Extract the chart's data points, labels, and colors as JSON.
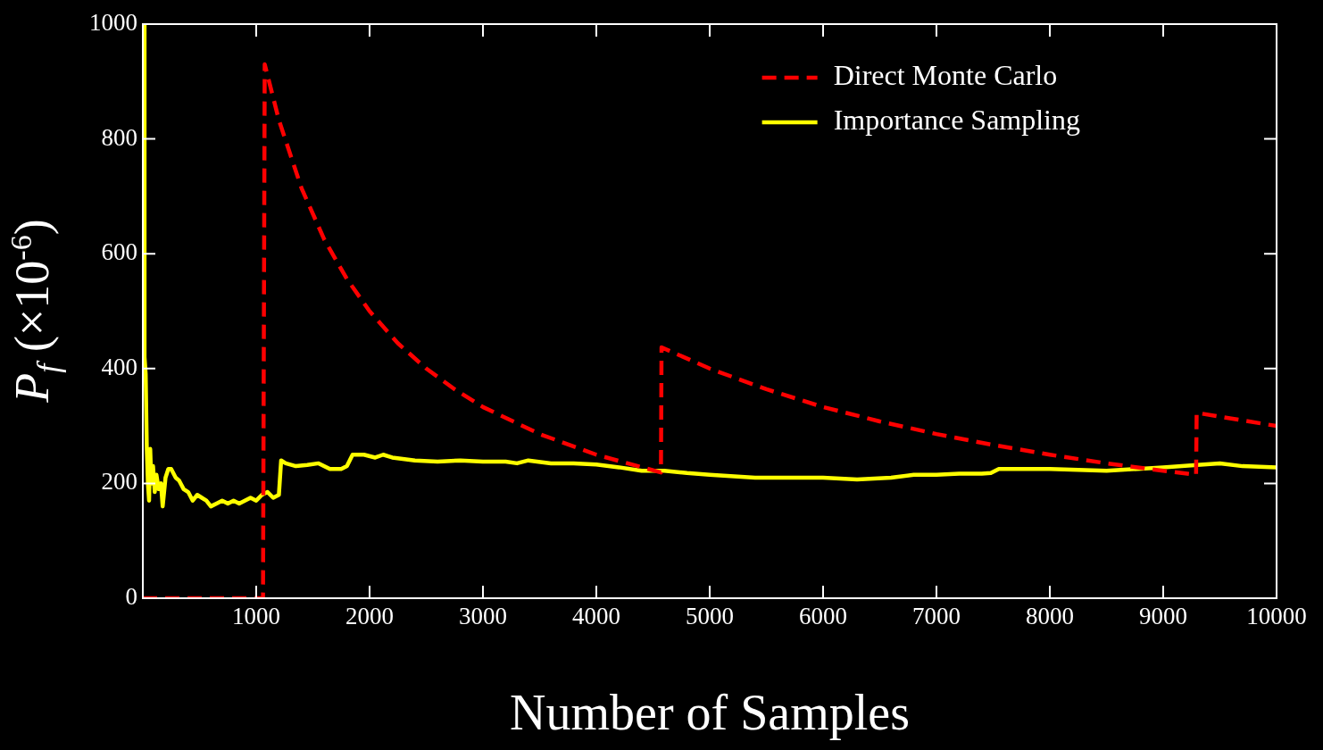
{
  "chart_data": {
    "type": "line",
    "xlabel": "Number of Samples",
    "ylabel": "P$_{f}$ (×10$^{-6}$)",
    "xlim": [
      0,
      10000
    ],
    "xticks": [
      1000,
      2000,
      3000,
      4000,
      5000,
      6000,
      7000,
      8000,
      9000,
      10000
    ],
    "ylim": [
      0,
      1000
    ],
    "yticks": [
      0,
      200,
      400,
      600,
      800,
      1000
    ],
    "grid": false,
    "legend": "top right",
    "marker": "none",
    "series": [
      {
        "name": "Direct Monte Carlo",
        "color": "#ff0000",
        "line_style": "dashed",
        "x": [
          0,
          1060,
          1075,
          1200,
          1400,
          1600,
          1800,
          2000,
          2250,
          2500,
          2750,
          3000,
          3500,
          4000,
          4570,
          4575,
          5000,
          5500,
          6000,
          6500,
          7000,
          7500,
          8000,
          8500,
          9000,
          9290,
          9295,
          9600,
          10000
        ],
        "values": [
          0,
          0,
          930,
          833,
          714,
          625,
          556,
          500,
          444,
          400,
          364,
          333,
          286,
          250,
          219,
          437,
          400,
          364,
          333,
          308,
          286,
          267,
          250,
          235,
          222,
          215,
          323,
          313,
          300
        ]
      },
      {
        "name": "Importance Sampling",
        "color": "#ffff00",
        "line_style": "solid",
        "x": [
          0,
          10,
          15,
          25,
          35,
          45,
          55,
          65,
          75,
          90,
          105,
          120,
          140,
          160,
          175,
          200,
          225,
          250,
          290,
          320,
          360,
          400,
          440,
          480,
          520,
          560,
          600,
          650,
          700,
          750,
          800,
          850,
          900,
          950,
          1000,
          1050,
          1100,
          1150,
          1200,
          1220,
          1260,
          1350,
          1450,
          1550,
          1650,
          1750,
          1800,
          1850,
          1950,
          2050,
          2120,
          2200,
          2400,
          2600,
          2800,
          3000,
          3200,
          3300,
          3400,
          3600,
          3800,
          4000,
          4200,
          4400,
          4600,
          4800,
          5000,
          5400,
          5800,
          6000,
          6300,
          6600,
          6800,
          7000,
          7200,
          7400,
          7480,
          7550,
          8000,
          8500,
          9000,
          9300,
          9500,
          9700,
          10000
        ],
        "values": [
          1000,
          1000,
          420,
          390,
          260,
          200,
          170,
          260,
          200,
          230,
          185,
          215,
          190,
          200,
          160,
          210,
          225,
          225,
          210,
          205,
          190,
          185,
          170,
          180,
          175,
          170,
          160,
          165,
          170,
          165,
          170,
          165,
          170,
          175,
          170,
          180,
          185,
          175,
          180,
          240,
          235,
          230,
          232,
          235,
          225,
          225,
          230,
          250,
          250,
          245,
          250,
          245,
          240,
          238,
          240,
          238,
          238,
          235,
          240,
          235,
          235,
          233,
          228,
          222,
          222,
          218,
          215,
          210,
          210,
          210,
          207,
          210,
          215,
          215,
          217,
          217,
          218,
          225,
          225,
          222,
          228,
          232,
          235,
          230,
          228
        ]
      }
    ]
  }
}
